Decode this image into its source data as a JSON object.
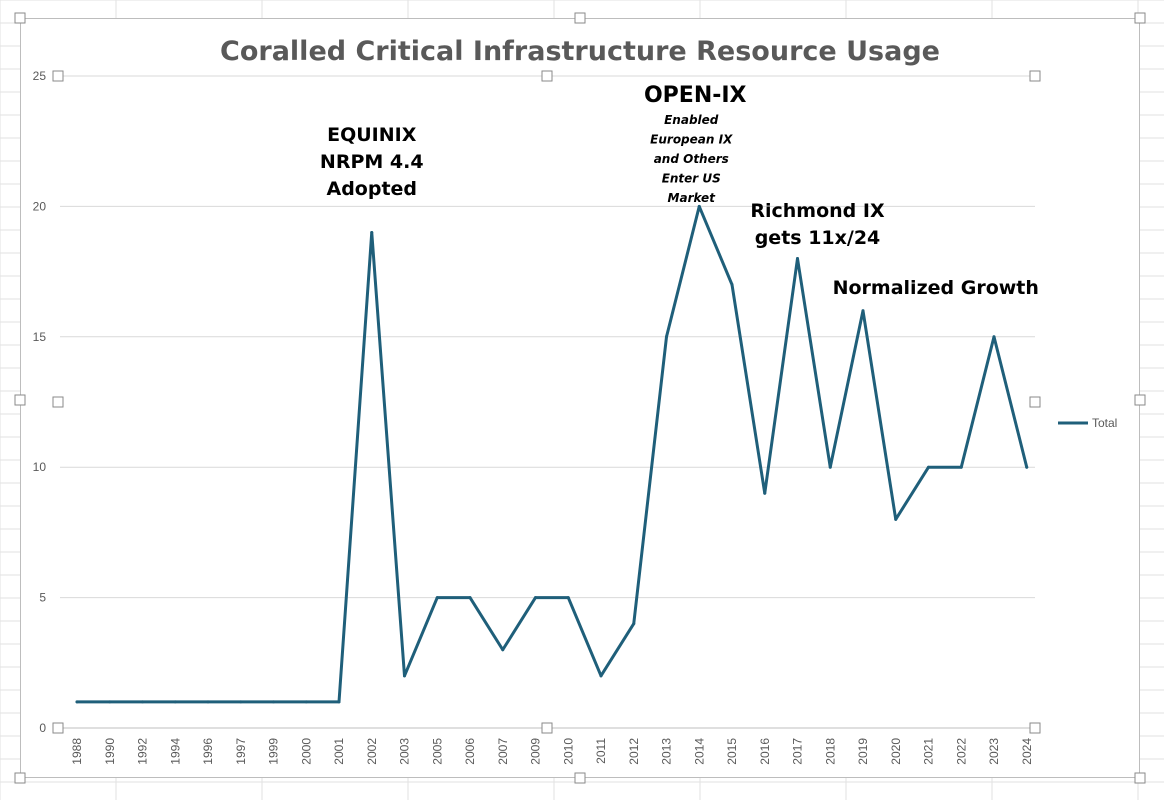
{
  "chart_data": {
    "type": "line",
    "title": "Coralled Critical Infrastructure Resource Usage",
    "xlabel": "",
    "ylabel": "",
    "ylim": [
      0,
      25
    ],
    "yticks": [
      "0",
      "5",
      "10",
      "15",
      "20",
      "25"
    ],
    "grid": true,
    "legend_position": "right",
    "categories": [
      "1988",
      "1990",
      "1992",
      "1994",
      "1996",
      "1997",
      "1999",
      "2000",
      "2001",
      "2002",
      "2003",
      "2005",
      "2006",
      "2007",
      "2009",
      "2010",
      "2011",
      "2012",
      "2013",
      "2014",
      "2015",
      "2016",
      "2017",
      "2018",
      "2019",
      "2020",
      "2021",
      "2022",
      "2023",
      "2024"
    ],
    "series": [
      {
        "name": "Total",
        "color": "#1f5f7a",
        "values": [
          1,
          1,
          1,
          1,
          1,
          1,
          1,
          1,
          1,
          19,
          2,
          5,
          5,
          3,
          5,
          5,
          2,
          4,
          15,
          20,
          17,
          9,
          18,
          10,
          16,
          8,
          10,
          10,
          15,
          10
        ]
      }
    ],
    "annotations": [
      {
        "category": "2002",
        "lines": [
          "EQUINIX",
          "NRPM 4.4",
          "Adopted"
        ]
      },
      {
        "category": "2014",
        "heading": "OPEN-IX",
        "lines": [
          "Enabled",
          "European IX",
          "and Others",
          "Enter US",
          "Market"
        ]
      },
      {
        "category": "2017",
        "lines": [
          "Richmond IX",
          "gets 11x/24"
        ]
      },
      {
        "category": "2020",
        "lines": [
          "Normalized Growth"
        ]
      }
    ]
  }
}
